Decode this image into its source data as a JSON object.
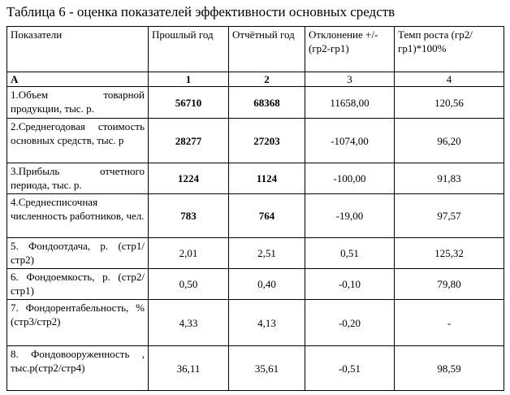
{
  "title": "Таблица 6 - оценка показателей эффективности основных средств",
  "table": {
    "header": [
      "Показатели",
      "Прошлый год",
      "Отчётный год",
      "Отклонение +/- (гр2-гр1)",
      "Темп роста (гр2/гр1)*100%"
    ],
    "index": [
      "А",
      "1",
      "2",
      "3",
      "4"
    ],
    "rows": [
      [
        "1.Объем товарной продукции, тыс. р.",
        "56710",
        "68368",
        "11658,00",
        "120,56"
      ],
      [
        "2.Среднегодовая стоимость основных средств, тыс. р",
        "28277",
        "27203",
        "-1074,00",
        "96,20"
      ],
      [
        "3.Прибыль отчетного периода, тыс. р.",
        "1224",
        "1124",
        "-100,00",
        "91,83"
      ],
      [
        "4.Среднесписочная численность работников, чел.",
        "783",
        "764",
        "-19,00",
        "97,57"
      ],
      [
        "5. Фондоотдача, р. (стр1/стр2)",
        "2,01",
        "2,51",
        "0,51",
        "125,32"
      ],
      [
        "6. Фондоемкость, р. (стр2/стр1)",
        "0,50",
        "0,40",
        "-0,10",
        "79,80"
      ],
      [
        "7. Фондорентабельность, % (стр3/стр2)",
        "4,33",
        "4,13",
        "-0,20",
        "-"
      ],
      [
        "8. Фондовооруженность , тыс.р(стр2/стр4)",
        "36,11",
        "35,61",
        "-0,51",
        "98,59"
      ]
    ]
  }
}
